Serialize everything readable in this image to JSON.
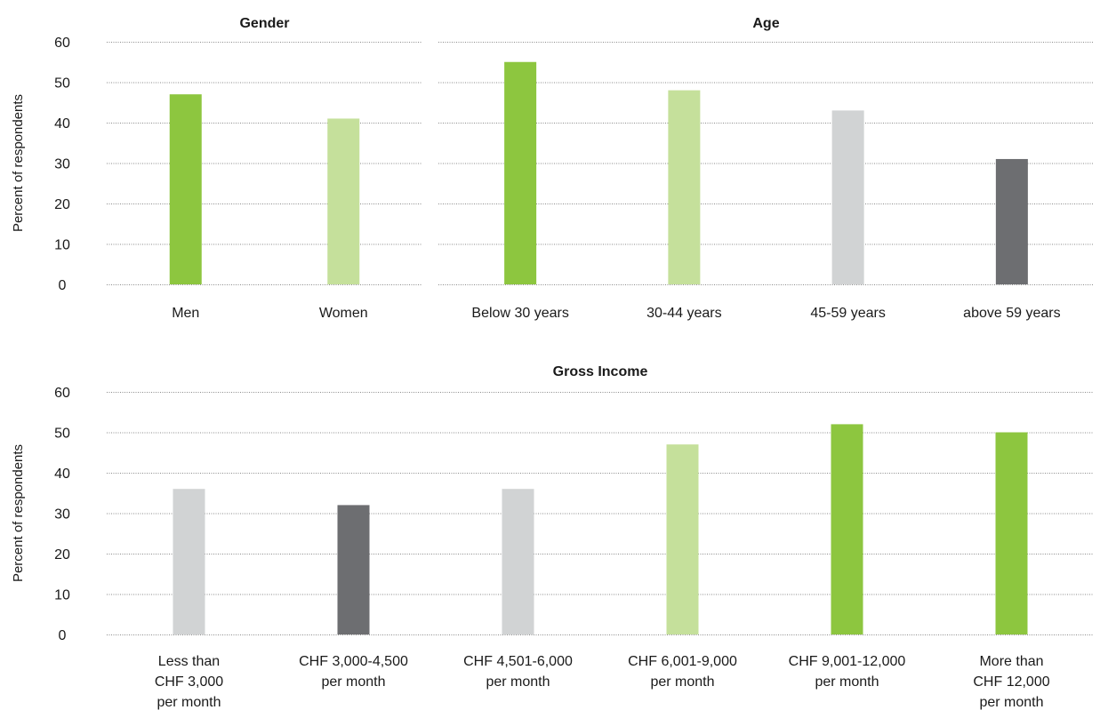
{
  "chart_data": [
    {
      "type": "bar",
      "title": "Gender",
      "ylabel": "Percent of respondents",
      "ylim": [
        0,
        60
      ],
      "yticks": [
        "0",
        "10",
        "20",
        "30",
        "40",
        "50",
        "60"
      ],
      "grid": true,
      "categories": [
        "Men",
        "Women"
      ],
      "values": [
        47,
        41
      ],
      "colors": [
        "#8dc63f",
        "#c5e09b"
      ]
    },
    {
      "type": "bar",
      "title": "Age",
      "ylim": [
        0,
        60
      ],
      "grid": true,
      "categories": [
        "Below 30 years",
        "30-44 years",
        "45-59 years",
        "above 59 years"
      ],
      "values": [
        55,
        48,
        43,
        31
      ],
      "colors": [
        "#8dc63f",
        "#c5e09b",
        "#d1d3d4",
        "#6d6e71"
      ]
    },
    {
      "type": "bar",
      "title": "Gross Income",
      "ylabel": "Percent of respondents",
      "ylim": [
        0,
        60
      ],
      "yticks": [
        "0",
        "10",
        "20",
        "30",
        "40",
        "50",
        "60"
      ],
      "grid": true,
      "categories": [
        "Less than CHF 3,000 per month",
        "CHF 3,000-4,500 per month",
        "CHF 4,501-6,000 per month",
        "CHF 6,001-9,000 per month",
        "CHF 9,001-12,000 per month",
        "More than CHF 12,000 per month"
      ],
      "category_lines": [
        [
          "Less than",
          "CHF 3,000",
          "per month"
        ],
        [
          "CHF 3,000-4,500",
          "per month"
        ],
        [
          "CHF 4,501-6,000",
          "per month"
        ],
        [
          "CHF 6,001-9,000",
          "per month"
        ],
        [
          "CHF 9,001-12,000",
          "per month"
        ],
        [
          "More than",
          "CHF 12,000",
          "per month"
        ]
      ],
      "values": [
        36,
        32,
        36,
        47,
        52,
        50
      ],
      "colors": [
        "#d1d3d4",
        "#6d6e71",
        "#d1d3d4",
        "#c5e09b",
        "#8dc63f",
        "#8dc63f"
      ]
    }
  ]
}
